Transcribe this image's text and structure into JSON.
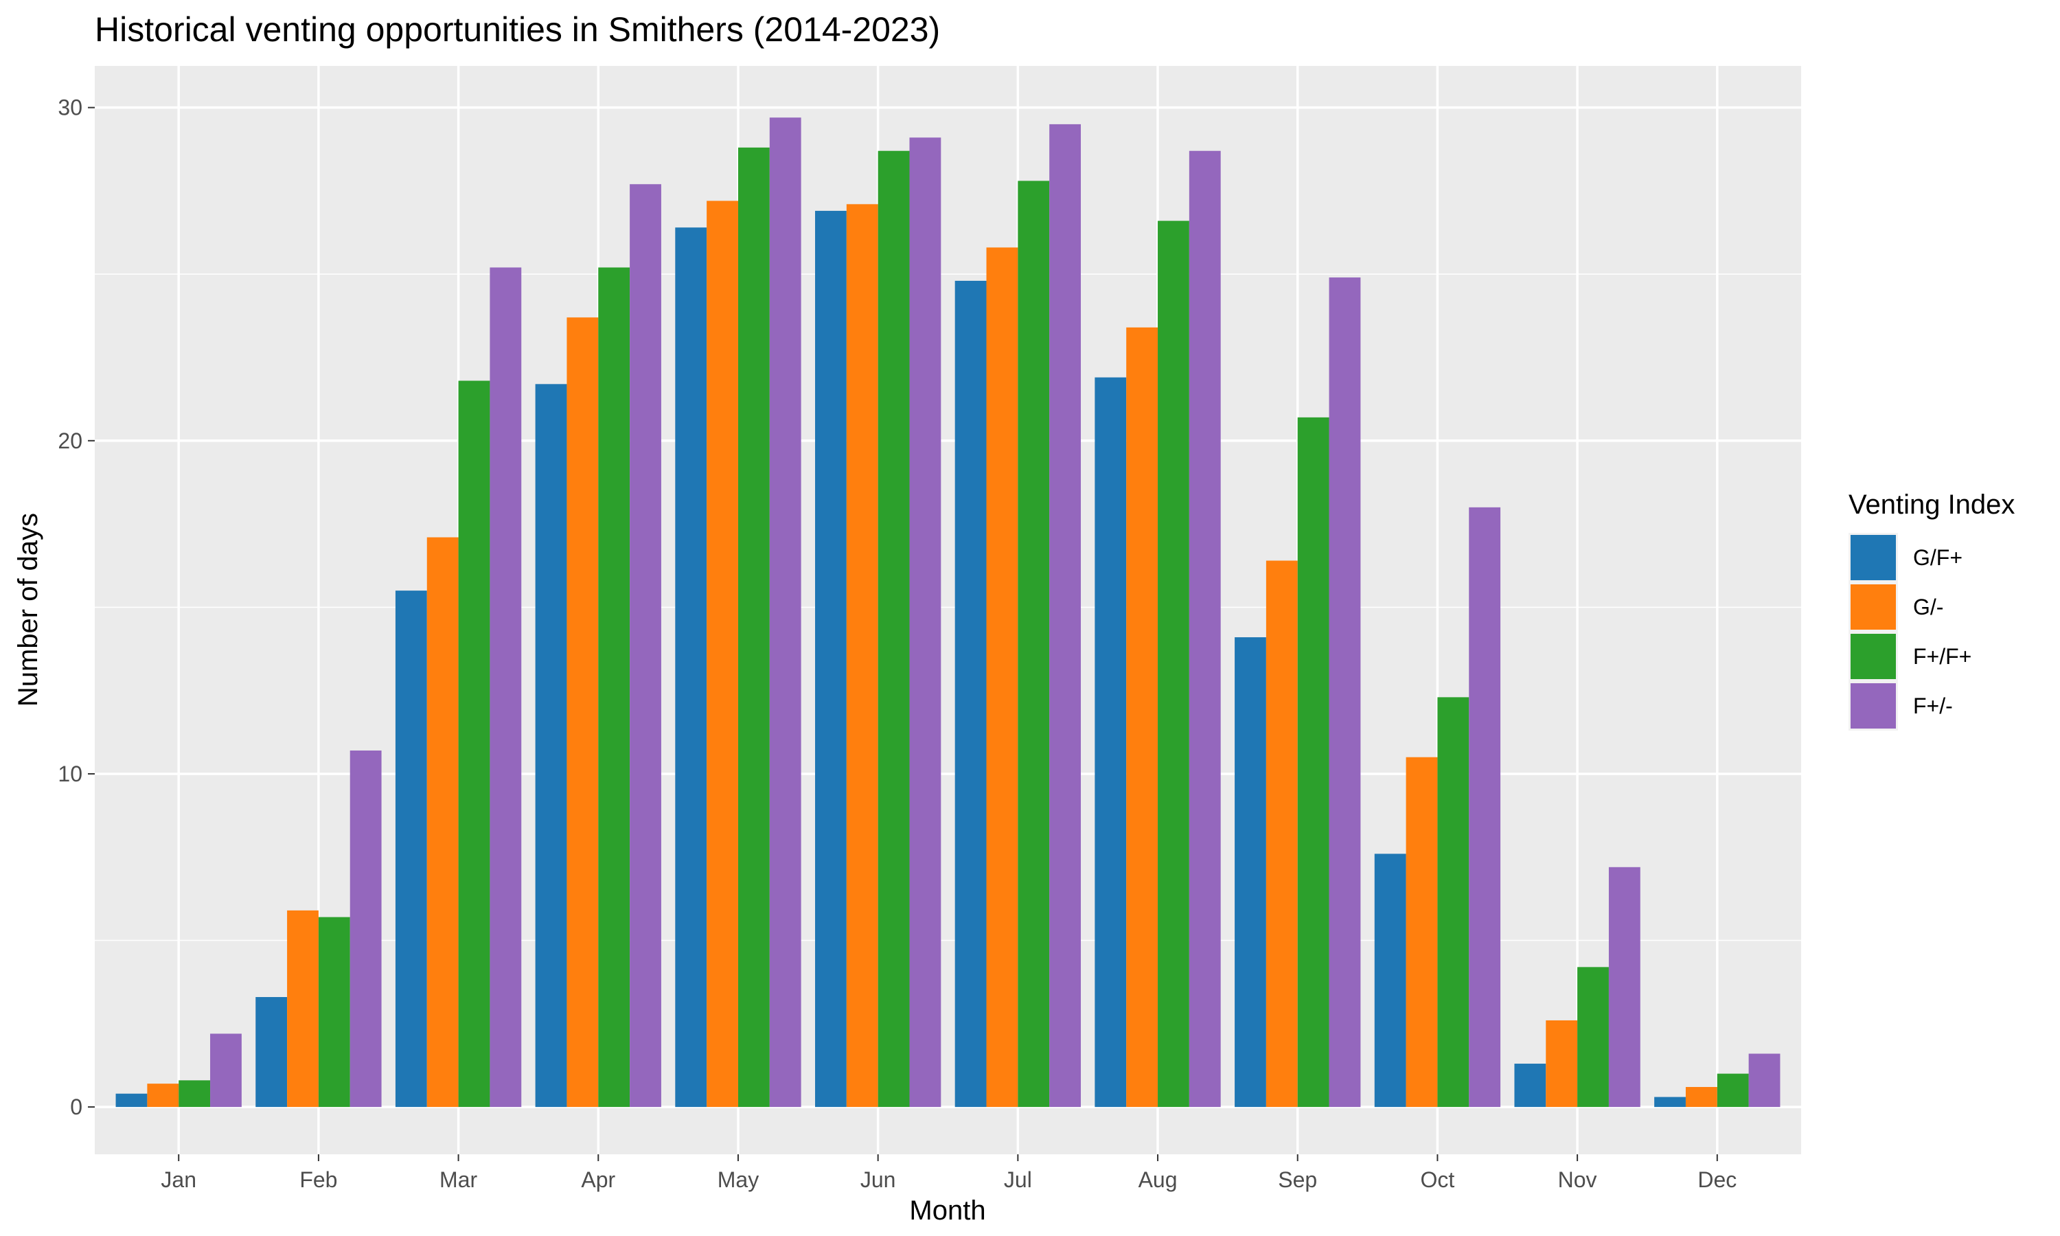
{
  "chart_data": {
    "type": "bar",
    "title": "Historical venting opportunities in Smithers (2014-2023)",
    "xlabel": "Month",
    "ylabel": "Number of days",
    "categories": [
      "Jan",
      "Feb",
      "Mar",
      "Apr",
      "May",
      "Jun",
      "Jul",
      "Aug",
      "Sep",
      "Oct",
      "Nov",
      "Dec"
    ],
    "series": [
      {
        "name": "G/F+",
        "color": "#1f77b4",
        "values": [
          0.4,
          3.3,
          15.5,
          21.7,
          26.4,
          26.9,
          24.8,
          21.9,
          14.1,
          7.6,
          1.3,
          0.3
        ]
      },
      {
        "name": "G/-",
        "color": "#ff7f0e",
        "values": [
          0.7,
          5.9,
          17.1,
          23.7,
          27.2,
          27.1,
          25.8,
          23.4,
          16.4,
          10.5,
          2.6,
          0.6
        ]
      },
      {
        "name": "F+/F+",
        "color": "#2ca02c",
        "values": [
          0.8,
          5.7,
          21.8,
          25.2,
          28.8,
          28.7,
          27.8,
          26.6,
          20.7,
          12.3,
          4.2,
          1.0
        ]
      },
      {
        "name": "F+/-",
        "color": "#9467bd",
        "values": [
          2.2,
          10.7,
          25.2,
          27.7,
          29.7,
          29.1,
          29.5,
          28.7,
          24.9,
          18.0,
          7.2,
          1.6
        ]
      }
    ],
    "ylim": [
      -1.42,
      31.25
    ],
    "yticks": [
      0,
      10,
      20,
      30
    ],
    "grid": true,
    "legend": {
      "title": "Venting Index",
      "position": "right"
    }
  }
}
